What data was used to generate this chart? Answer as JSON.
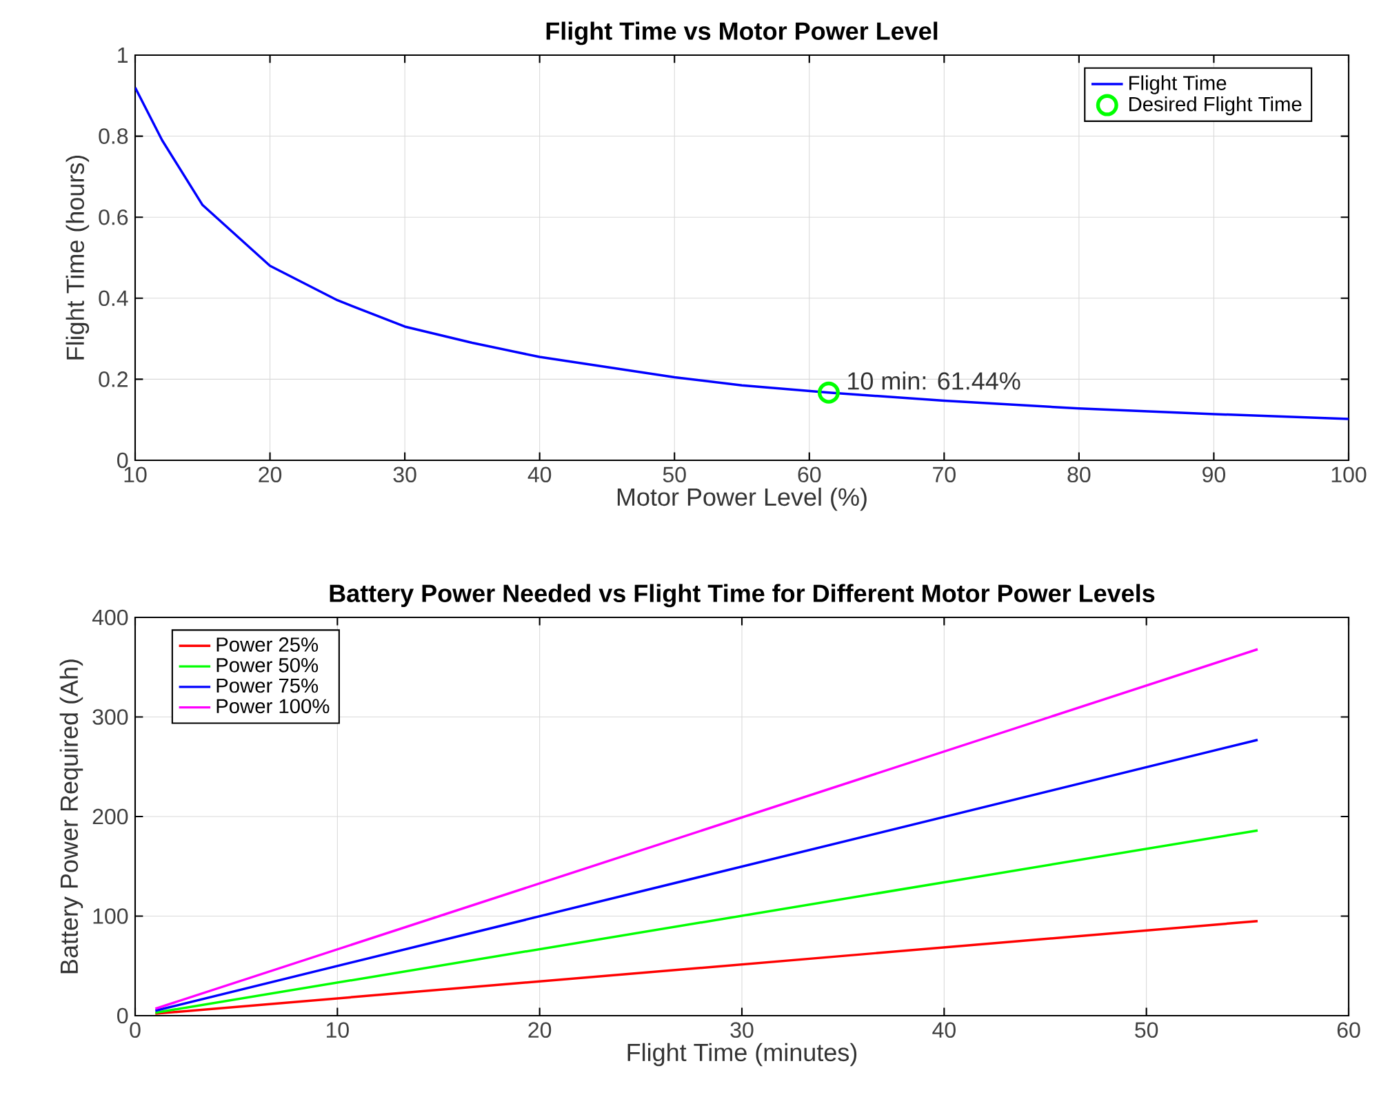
{
  "chart_data": [
    {
      "type": "line",
      "title": "Flight Time vs Motor Power Level",
      "xlabel": "Motor Power Level (%)",
      "ylabel": "Flight Time (hours)",
      "xlim": [
        10,
        100
      ],
      "xticks": [
        10,
        20,
        30,
        40,
        50,
        60,
        70,
        80,
        90,
        100
      ],
      "ylim": [
        0,
        1
      ],
      "yticks": [
        0,
        0.2,
        0.4,
        0.6,
        0.8,
        1
      ],
      "grid": true,
      "legend": "top right",
      "series": [
        {
          "name": "Flight Time",
          "type": "line",
          "color": "#0000ff",
          "marker": "none",
          "line_style": "solid",
          "x": [
            10,
            12,
            15,
            20,
            25,
            30,
            35,
            40,
            45,
            50,
            55,
            61.44,
            70,
            80,
            90,
            100
          ],
          "values": [
            0.92,
            0.79,
            0.63,
            0.48,
            0.395,
            0.33,
            0.29,
            0.255,
            0.23,
            0.205,
            0.185,
            0.167,
            0.147,
            0.128,
            0.114,
            0.102
          ]
        },
        {
          "name": "Desired Flight Time",
          "type": "scatter",
          "color": "#00ff00",
          "marker": "circle",
          "x": [
            61.44
          ],
          "values": [
            0.167
          ]
        }
      ],
      "annotations": [
        {
          "text": "10 min: 61.44%",
          "x": 61.44,
          "y": 0.167
        }
      ]
    },
    {
      "type": "line",
      "title": "Battery Power Needed vs Flight Time for Different Motor Power Levels",
      "xlabel": "Flight Time (minutes)",
      "ylabel": "Battery Power Required (Ah)",
      "xlim": [
        0,
        60
      ],
      "xticks": [
        0,
        10,
        20,
        30,
        40,
        50,
        60
      ],
      "ylim": [
        0,
        400
      ],
      "yticks": [
        0,
        100,
        200,
        300,
        400
      ],
      "grid": true,
      "legend": "top left",
      "marker": "none",
      "line_style": "solid",
      "series": [
        {
          "name": "Power 25%",
          "color": "#ff0000",
          "x": [
            1,
            55.5
          ],
          "values": [
            2,
            95
          ]
        },
        {
          "name": "Power 50%",
          "color": "#00ff00",
          "x": [
            1,
            55.5
          ],
          "values": [
            3,
            186
          ]
        },
        {
          "name": "Power 75%",
          "color": "#0000ff",
          "x": [
            1,
            55.5
          ],
          "values": [
            5,
            277
          ]
        },
        {
          "name": "Power 100%",
          "color": "#ff00ff",
          "x": [
            1,
            55.5
          ],
          "values": [
            7,
            368
          ]
        }
      ]
    }
  ]
}
